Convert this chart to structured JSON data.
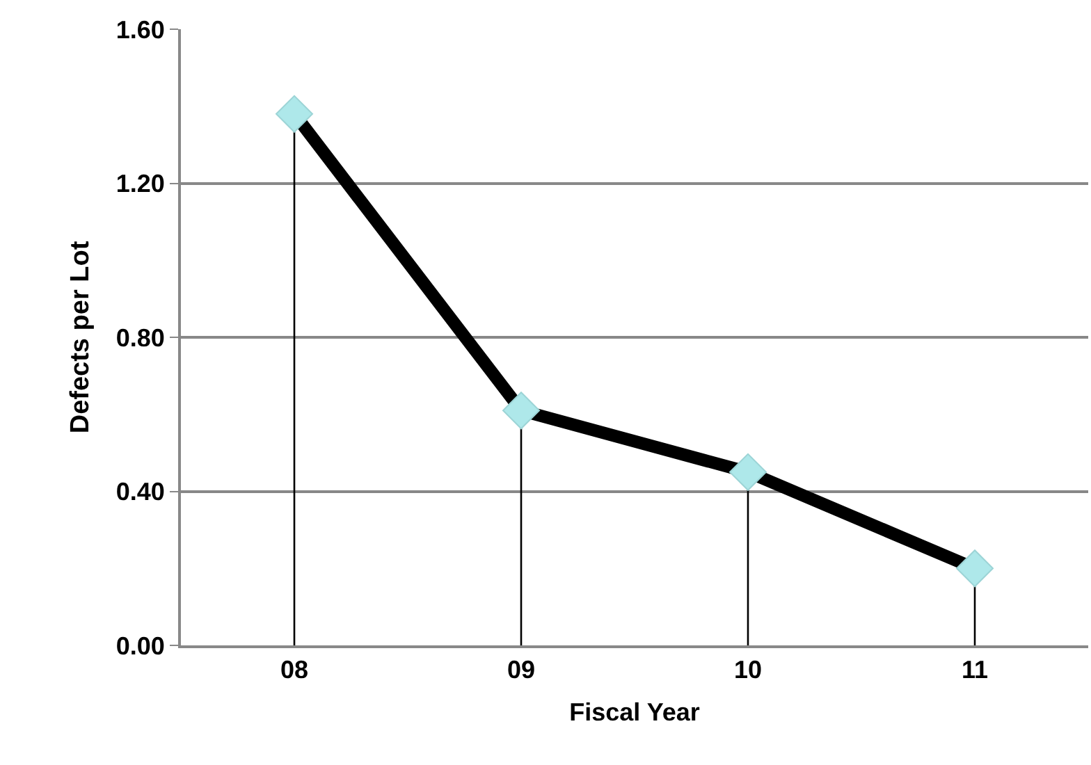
{
  "chart_data": {
    "type": "line",
    "xlabel": "Fiscal Year",
    "ylabel": "Defects per Lot",
    "categories": [
      "08",
      "09",
      "10",
      "11"
    ],
    "series": [
      {
        "color": "#000000",
        "marker": "none",
        "values": [
          1.38,
          0.61,
          0.45,
          0.2
        ]
      },
      {
        "type": "lollipop",
        "color": "#aee8ea",
        "marker": "diamond",
        "values": [
          1.38,
          0.61,
          0.45,
          0.2
        ]
      }
    ],
    "ylim": [
      0,
      1.6
    ],
    "yticks": [
      {
        "value": 0,
        "label": "0.00"
      },
      {
        "value": 0.4,
        "label": "0.40"
      },
      {
        "value": 0.8,
        "label": "0.80"
      },
      {
        "value": 1.2,
        "label": "1.20"
      },
      {
        "value": 1.6,
        "label": "1.60"
      }
    ],
    "grid": "y"
  }
}
